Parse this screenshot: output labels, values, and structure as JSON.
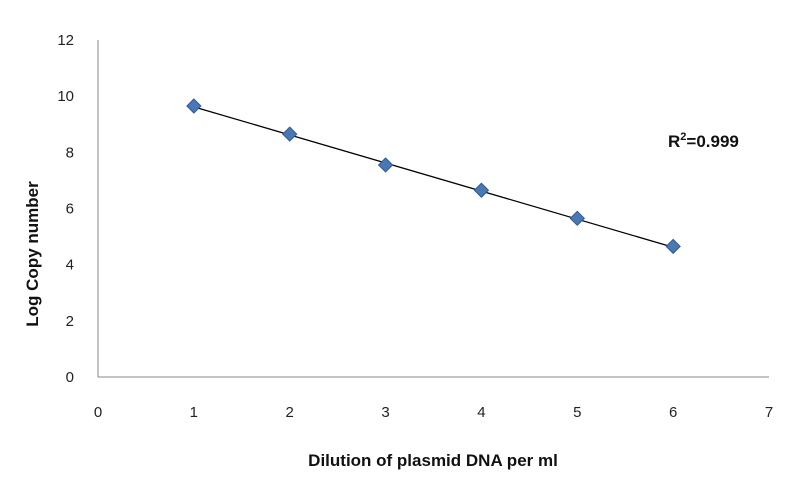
{
  "chart_data": {
    "type": "scatter",
    "title": "",
    "xlabel": "Dilution of plasmid DNA per ml",
    "ylabel": "Log Copy number",
    "xlim": [
      0,
      7
    ],
    "ylim": [
      0,
      12
    ],
    "x_ticks": [
      "0",
      "1",
      "2",
      "3",
      "4",
      "5",
      "6",
      "7"
    ],
    "y_ticks": [
      "0",
      "2",
      "4",
      "6",
      "8",
      "10",
      "12"
    ],
    "grid": false,
    "legend": "none",
    "series": [
      {
        "marker": "diamond",
        "color": "#4a78b5",
        "x": [
          1,
          2,
          3,
          4,
          5,
          6
        ],
        "y": [
          9.65,
          8.65,
          7.55,
          6.65,
          5.65,
          4.65
        ]
      }
    ],
    "trendline": {
      "type": "linear",
      "color": "#000000",
      "x": [
        1,
        6
      ],
      "y": [
        9.62,
        4.62
      ]
    },
    "annotation": {
      "prefix": "R",
      "sup": "2",
      "suffix": "=0.999"
    }
  }
}
